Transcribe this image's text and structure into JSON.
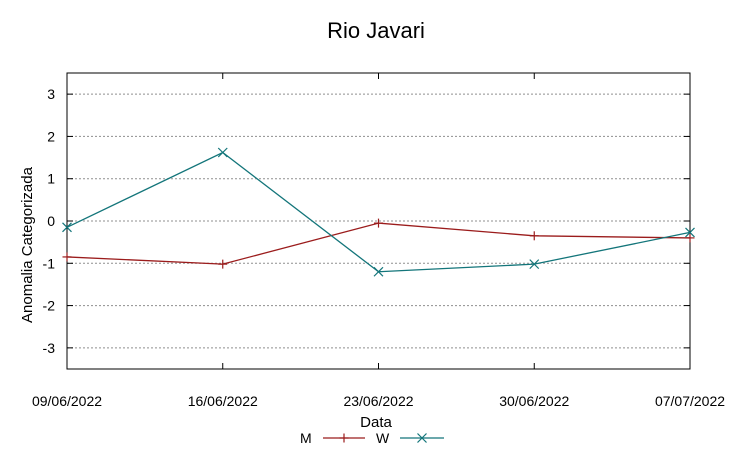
{
  "chart_data": {
    "type": "line",
    "title": "Rio Javari",
    "xlabel": "Data",
    "ylabel": "Anomalia Categorizada",
    "categories": [
      "09/06/2022",
      "16/06/2022",
      "23/06/2022",
      "30/06/2022",
      "07/07/2022"
    ],
    "ylim": [
      -3.5,
      3.5
    ],
    "yticks": [
      "3",
      "2",
      "1",
      "0",
      "-1",
      "-2",
      "-3"
    ],
    "ytick_values": [
      3,
      2,
      1,
      0,
      -1,
      -2,
      -3
    ],
    "grid": true,
    "legend_position": "bottom-center",
    "series": [
      {
        "name": "M",
        "color": "#9b1c1c",
        "marker": "plus",
        "values": [
          -0.85,
          -1.02,
          -0.05,
          -0.35,
          -0.4
        ]
      },
      {
        "name": "W",
        "color": "#13757a",
        "marker": "cross",
        "values": [
          -0.15,
          1.62,
          -1.2,
          -1.02,
          -0.27
        ]
      }
    ]
  }
}
